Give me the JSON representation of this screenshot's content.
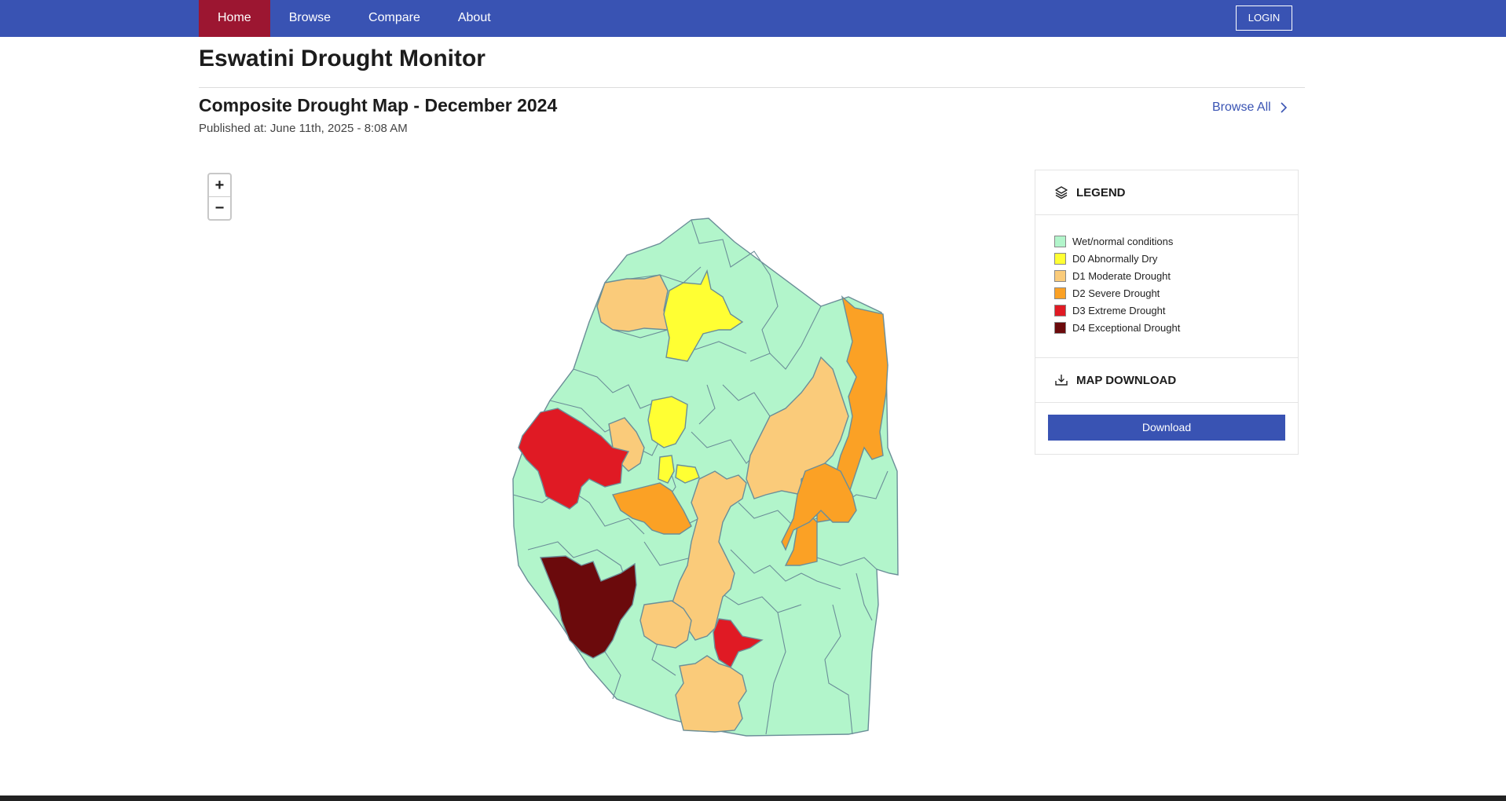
{
  "nav": {
    "items": [
      {
        "label": "Home",
        "active": true
      },
      {
        "label": "Browse",
        "active": false
      },
      {
        "label": "Compare",
        "active": false
      },
      {
        "label": "About",
        "active": false
      }
    ],
    "login_label": "LOGIN"
  },
  "page": {
    "title": "Eswatini Drought Monitor",
    "map_title": "Composite Drought Map - December 2024",
    "published": "Published at: June 11th, 2025 - 8:08 AM",
    "browse_all": "Browse All"
  },
  "zoom": {
    "in_label": "+",
    "out_label": "−"
  },
  "legend": {
    "heading": "LEGEND",
    "icon": "layers-icon",
    "items": [
      {
        "label": "Wet/normal conditions",
        "color": "#b2f5cb"
      },
      {
        "label": "D0 Abnormally Dry",
        "color": "#ffff33"
      },
      {
        "label": "D1 Moderate Drought",
        "color": "#facb7a"
      },
      {
        "label": "D2 Severe Drought",
        "color": "#fba125"
      },
      {
        "label": "D3 Extreme Drought",
        "color": "#e01a24"
      },
      {
        "label": "D4 Exceptional Drought",
        "color": "#6b0a0c"
      }
    ]
  },
  "download": {
    "heading": "MAP DOWNLOAD",
    "icon": "download-tray-icon",
    "button_label": "Download"
  },
  "colors": {
    "primary": "#3953b3",
    "nav_active": "#9c1631",
    "region_border": "#6b8e98"
  }
}
